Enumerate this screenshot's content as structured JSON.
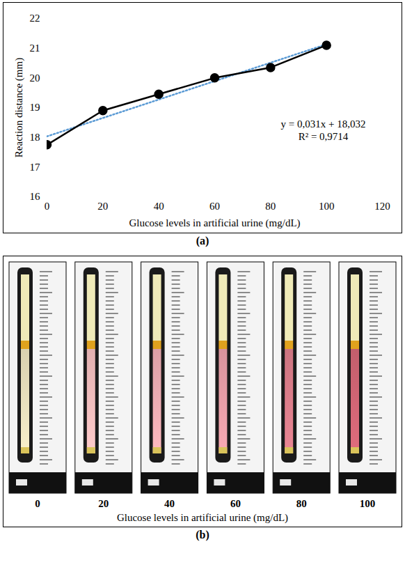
{
  "chart_data": {
    "type": "line",
    "caption": "(a)",
    "xlabel": "Glucose levels in artificial urine (mg/dL)",
    "ylabel": "Reaction distance (mm)",
    "x": [
      0,
      20,
      40,
      60,
      80,
      100
    ],
    "values": [
      17.75,
      18.9,
      19.45,
      20.0,
      20.35,
      21.1
    ],
    "color": "#000000",
    "marker": "circle",
    "line_style": "solid",
    "xlim": [
      0,
      120
    ],
    "xticks": [
      0,
      20,
      40,
      60,
      80,
      100,
      120
    ],
    "ylim": [
      16,
      22
    ],
    "yticks": [
      16,
      17,
      18,
      19,
      20,
      21,
      22
    ],
    "grid": false,
    "trendline": {
      "slope": 0.031,
      "intercept": 18.032,
      "color": "#5b9bd5",
      "line_style": "dotted",
      "equation": "y = 0,031x + 18,032",
      "r_squared": "R² = 0,9714"
    }
  },
  "photo_panel": {
    "caption": "(b)",
    "axis_label": "Glucose levels in artificial urine (mg/dL)",
    "strips": [
      {
        "label": "0",
        "color": "#d8d0b0"
      },
      {
        "label": "20",
        "color": "#e2b0b0"
      },
      {
        "label": "40",
        "color": "#dca0a6"
      },
      {
        "label": "60",
        "color": "#d8939c"
      },
      {
        "label": "80",
        "color": "#cc7480"
      },
      {
        "label": "100",
        "color": "#c25e6c"
      }
    ]
  }
}
